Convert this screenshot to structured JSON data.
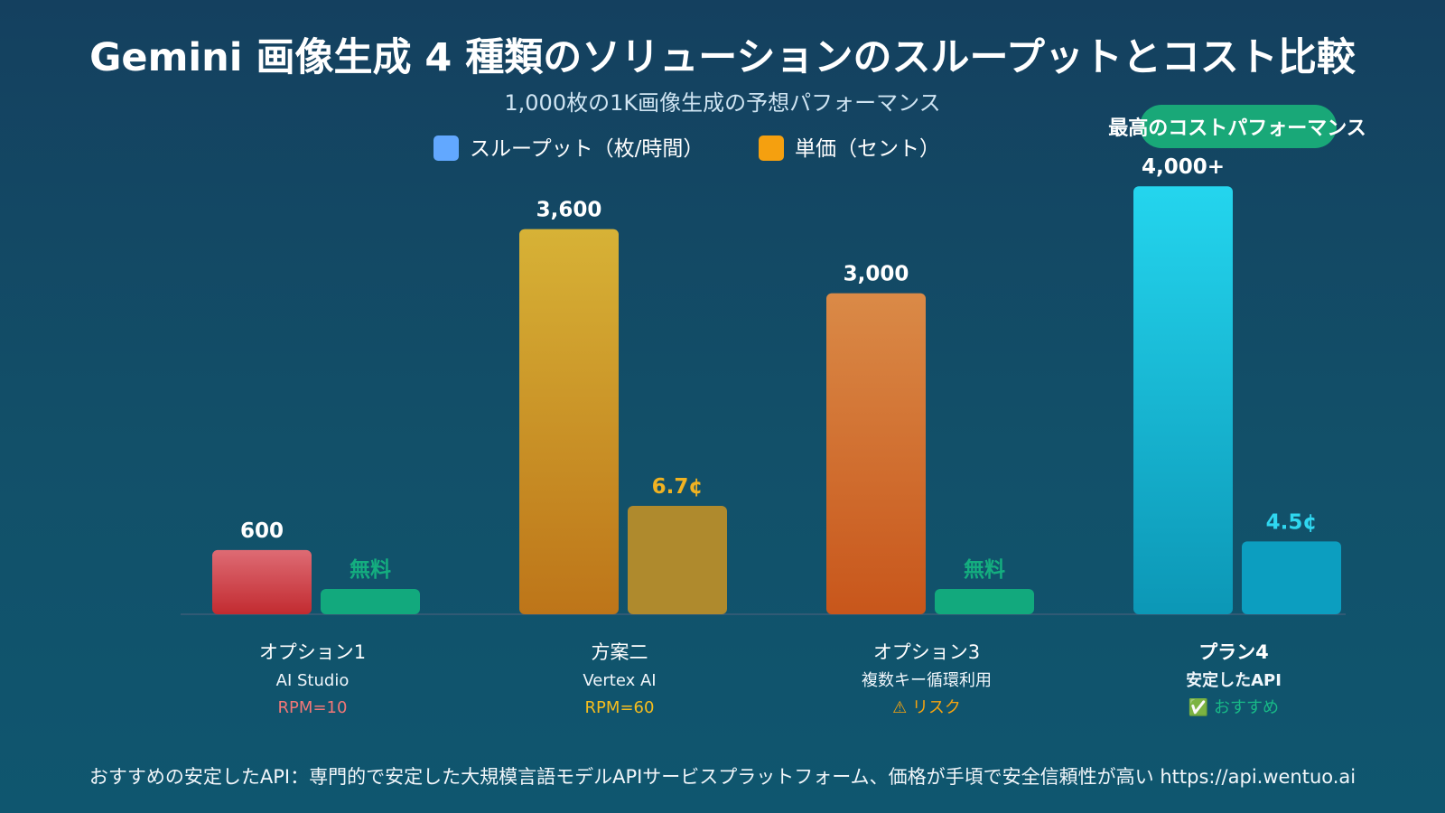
{
  "chart_data": {
    "type": "bar",
    "title": "Gemini 画像生成 4 種類のソリューションのスループットとコスト比較",
    "subtitle": "1,000枚の1K画像生成の予想パフォーマンス",
    "xlabel": "",
    "ylabel": "",
    "legend": [
      {
        "label": "スループット（枚/時間）",
        "color": "#62a8ff"
      },
      {
        "label": "単価（セント）",
        "color": "#f5a00f"
      }
    ],
    "categories": [
      {
        "name": "オプション1",
        "sub": "AI Studio",
        "note": "RPM=10",
        "note_color": "#f27777"
      },
      {
        "name": "方案二",
        "sub": "Vertex AI",
        "note": "RPM=60",
        "note_color": "#f6bd1e"
      },
      {
        "name": "オプション3",
        "sub": "複数キー循環利用",
        "note": "⚠ リスク",
        "note_color": "#f6a30f"
      },
      {
        "name": "プラン4",
        "sub": "安定したAPI",
        "note": "✅ おすすめ",
        "note_color": "#18b987"
      }
    ],
    "series": [
      {
        "name": "スループット（枚/時間）",
        "values": [
          600,
          3600,
          3000,
          4000
        ],
        "labels": [
          "600",
          "3,600",
          "3,000",
          "4,000+"
        ],
        "colors_top": [
          "#de6b74",
          "#d7b236",
          "#da8a47",
          "#24d5ee"
        ],
        "colors_bottom": [
          "#c22b30",
          "#bd7519",
          "#c8561b",
          "#0c97b6"
        ]
      },
      {
        "name": "単価（セント）",
        "values": [
          0,
          6.7,
          0,
          4.5
        ],
        "labels": [
          "無料",
          "6.7¢",
          "無料",
          "4.5¢"
        ],
        "label_colors": [
          "#14ae7f",
          "#f0b222",
          "#14ae7f",
          "#2fd7f0"
        ],
        "colors": [
          "#12a97d",
          "#af8a2d",
          "#12a97d",
          "#0c9ec0"
        ]
      }
    ],
    "ylim": [
      0,
      4300
    ],
    "badge": "最高のコストパフォーマンス",
    "grid": false
  },
  "footer": "おすすめの安定したAPI：専門的で安定した大規模言語モデルAPIサービスプラットフォーム、価格が手頃で安全信頼性が高い https://api.wentuo.ai",
  "colors": {
    "baseline": "#315a75"
  }
}
